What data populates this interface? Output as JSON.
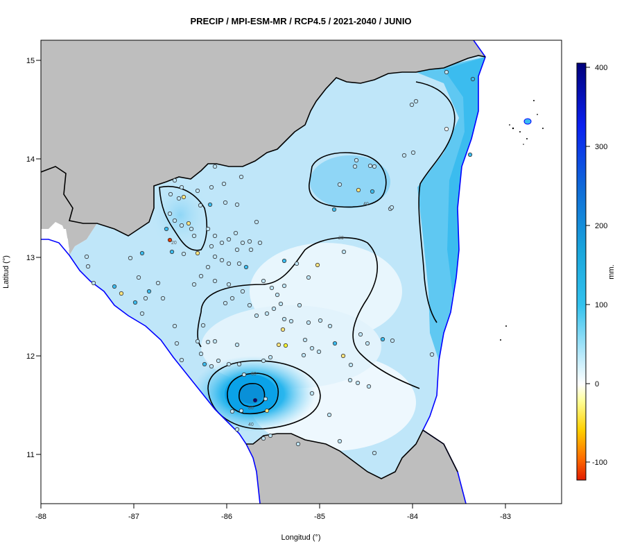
{
  "title": "PRECIP / MPI-ESM-MR / RCP4.5 / 2021-2040 / JUNIO",
  "xlabel": "Longitud (°)",
  "ylabel": "Latitud (°)",
  "colorbar": {
    "label": "mm.",
    "ticks": [
      "400",
      "300",
      "200",
      "100",
      "0",
      "-100"
    ],
    "range": [
      -120,
      405
    ],
    "colors": [
      "#e11b00",
      "#ff6a00",
      "#ffd000",
      "#ffff66",
      "#ffffff",
      "#9fe1f7",
      "#33c2ee",
      "#1ea0e0",
      "#1060d8",
      "#0000ff",
      "#00007a"
    ]
  },
  "axes": {
    "x_ticks": [
      "-88",
      "-87",
      "-86",
      "-85",
      "-84",
      "-83"
    ],
    "y_ticks": [
      "15",
      "14",
      "13",
      "12",
      "11"
    ],
    "xlim": [
      -88,
      -82.4
    ],
    "ylim": [
      10.5,
      15.2
    ]
  },
  "contour_labels": [
    "20",
    "20",
    "40",
    "40",
    "60",
    "60",
    "80",
    "40",
    "20"
  ],
  "colors": {
    "land_outside": "#bebebe",
    "coast_blue": "#0000ff",
    "border": "#000000"
  }
}
